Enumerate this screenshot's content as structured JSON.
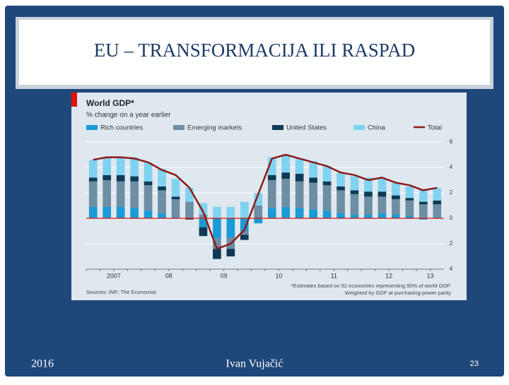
{
  "slide": {
    "title": "EU – TRANSFORMACIJA ILI RASPAD",
    "footer_left": "2016",
    "footer_center": "Ivan Vujačić",
    "page_number": "23"
  },
  "chart_data": {
    "type": "bar",
    "stacked": true,
    "title": "World GDP*",
    "subtitle": "% change on a year earlier",
    "footnote": "*Estimates based on 52 economies representing 90% of world GDP. Weighted by GDP at purchasing-power parity",
    "source": "Sources: IMF; The Economist",
    "categories": [
      null,
      "2007",
      null,
      null,
      null,
      "08",
      null,
      null,
      null,
      "09",
      null,
      null,
      null,
      "10",
      null,
      null,
      null,
      "11",
      null,
      null,
      null,
      "12",
      null,
      null,
      "13",
      null
    ],
    "series": [
      {
        "name": "Rich countries",
        "color": "#1a9ad6",
        "values": [
          0.9,
          0.9,
          0.9,
          0.8,
          0.6,
          0.4,
          0.1,
          0,
          -0.7,
          -1.6,
          -1.5,
          -1.0,
          -0.4,
          0.8,
          0.9,
          0.8,
          0.7,
          0.6,
          0.4,
          0.3,
          0.3,
          0.4,
          0.3,
          0.2,
          -0.1,
          0.1
        ]
      },
      {
        "name": "Emerging markets",
        "color": "#6e8ea3",
        "values": [
          2.0,
          2.1,
          2.0,
          2.1,
          2.0,
          1.8,
          1.4,
          1.3,
          0.3,
          -0.8,
          -0.9,
          -0.3,
          1.0,
          2.2,
          2.2,
          2.1,
          2.1,
          2.0,
          1.8,
          1.6,
          1.4,
          1.3,
          1.2,
          1.2,
          1.1,
          1.0
        ]
      },
      {
        "name": "United States",
        "color": "#0e3a55",
        "values": [
          0.3,
          0.4,
          0.5,
          0.4,
          0.3,
          0.3,
          0.2,
          -0.1,
          -0.7,
          -0.8,
          -0.6,
          -0.4,
          0,
          0.4,
          0.5,
          0.6,
          0.4,
          0.3,
          0.3,
          0.3,
          0.4,
          0.4,
          0.3,
          0.2,
          0.2,
          0.3
        ]
      },
      {
        "name": "China",
        "color": "#7fd3f0",
        "values": [
          1.4,
          1.4,
          1.4,
          1.5,
          1.5,
          1.4,
          1.4,
          1.1,
          0.9,
          0.9,
          0.9,
          1.3,
          1.0,
          1.4,
          1.4,
          1.2,
          1.3,
          1.2,
          1.1,
          1.1,
          1.1,
          1.0,
          1.0,
          0.9,
          1.0,
          1.0
        ]
      },
      {
        "name": "Total",
        "type": "line",
        "color": "#8b1a1a",
        "values": [
          4.6,
          4.8,
          4.8,
          4.7,
          4.4,
          3.8,
          3.4,
          2.4,
          0.5,
          -2.4,
          -2.0,
          -0.9,
          1.9,
          4.7,
          5.0,
          4.7,
          4.4,
          4.1,
          3.6,
          3.4,
          3.0,
          3.2,
          2.8,
          2.6,
          2.2,
          2.4
        ]
      }
    ],
    "ylim": [
      -4,
      6
    ],
    "yticks": [
      {
        "value": -4,
        "label": "4"
      },
      {
        "value": -2,
        "label": "2"
      },
      0,
      2,
      4,
      6
    ],
    "grid": true
  }
}
